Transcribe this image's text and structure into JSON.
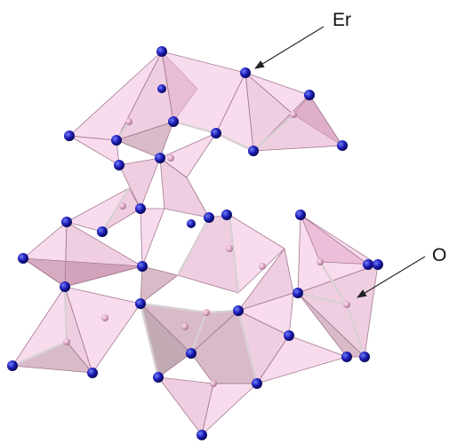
{
  "labels": {
    "er": "Er",
    "o": "O"
  },
  "colors": {
    "background": "#ffffff",
    "polyhedron_face_light": "#f3bfe0",
    "polyhedron_face_mid": "#e3a6c9",
    "polyhedron_face_dark": "#b9829c",
    "polyhedron_edge": "#a37a90",
    "oxygen_atom": "#1a1ab0",
    "erbium_atom": "#d9a3c0",
    "bond": "#d8d0d4",
    "arrow": "#222222"
  },
  "icons": {
    "oxygen": "blue-sphere",
    "erbium": "pink-sphere"
  }
}
